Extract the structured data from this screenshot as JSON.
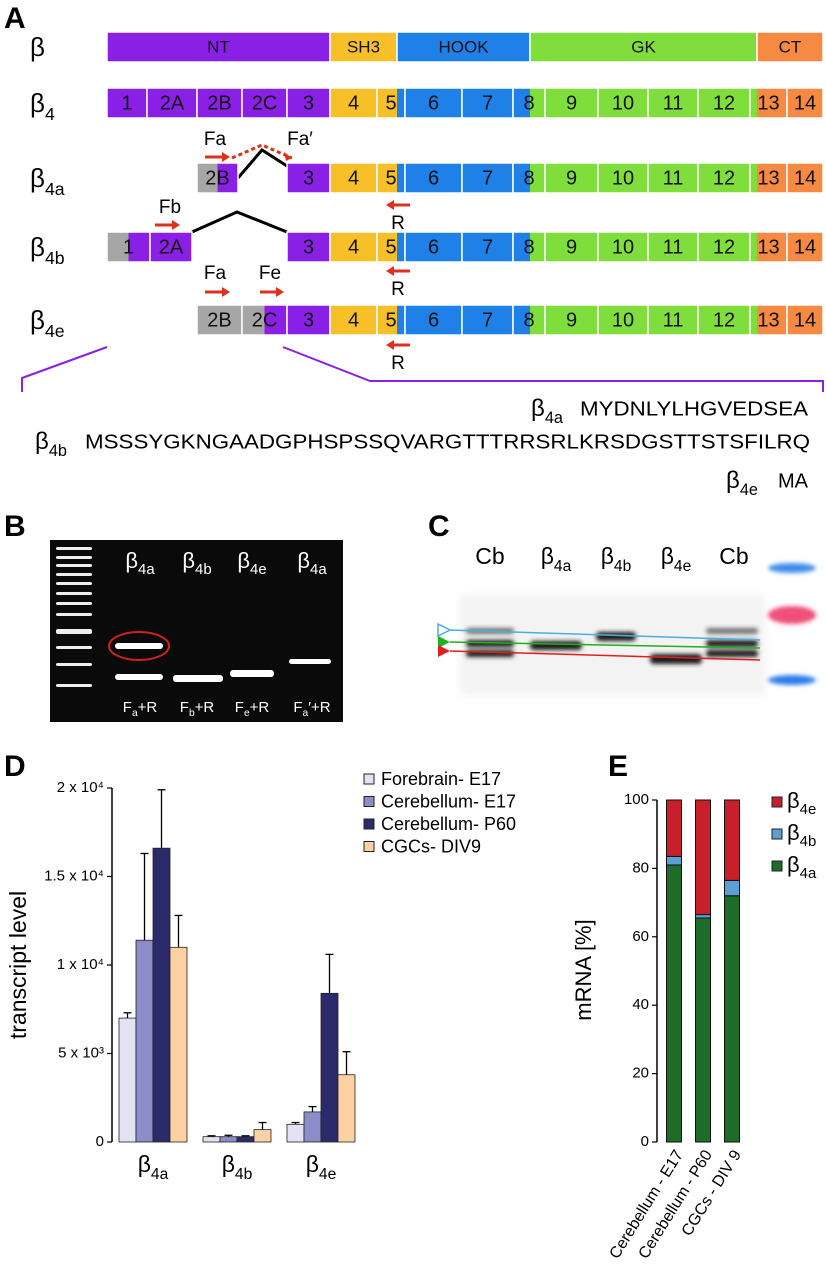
{
  "panel_a": {
    "label": "A",
    "rows": [
      {
        "name": {
          "symbol": "β"
        },
        "segments": [
          {
            "label": "NT",
            "colors": [
              "#8a1fe6"
            ]
          },
          {
            "label": "SH3",
            "colors": [
              "#f7c028"
            ]
          },
          {
            "label": "HOOK",
            "colors": [
              "#1f80e8"
            ]
          },
          {
            "label": "GK",
            "colors": [
              "#80de3c"
            ]
          },
          {
            "label": "CT",
            "colors": [
              "#f68a42"
            ]
          }
        ]
      },
      {
        "name": {
          "symbol": "β",
          "sub": "4"
        },
        "segments": [
          {
            "label": "1",
            "colors": [
              "#8a1fe6"
            ]
          },
          {
            "label": "2A",
            "colors": [
              "#8a1fe6"
            ]
          },
          {
            "label": "2B",
            "colors": [
              "#8a1fe6"
            ]
          },
          {
            "label": "2C",
            "colors": [
              "#8a1fe6"
            ]
          },
          {
            "label": "3",
            "colors": [
              "#8a1fe6"
            ]
          },
          {
            "label": "4",
            "colors": [
              "#f7c028"
            ]
          },
          {
            "label": "5",
            "colors": [
              "#f7c028",
              "#1f80e8"
            ]
          },
          {
            "label": "6",
            "colors": [
              "#1f80e8"
            ]
          },
          {
            "label": "7",
            "colors": [
              "#1f80e8"
            ]
          },
          {
            "label": "8",
            "colors": [
              "#1f80e8",
              "#80de3c"
            ]
          },
          {
            "label": "9",
            "colors": [
              "#80de3c"
            ]
          },
          {
            "label": "10",
            "colors": [
              "#80de3c"
            ]
          },
          {
            "label": "11",
            "colors": [
              "#80de3c"
            ]
          },
          {
            "label": "12",
            "colors": [
              "#80de3c"
            ]
          },
          {
            "label": "13",
            "colors": [
              "#80de3c",
              "#f68a42"
            ]
          },
          {
            "label": "14",
            "colors": [
              "#f68a42"
            ]
          }
        ]
      },
      {
        "name": {
          "symbol": "β",
          "sub": "4a"
        },
        "segments": [
          {
            "label": "2B",
            "colors": [
              "#a6a6a6",
              "#8a1fe6"
            ]
          },
          {
            "label": "3",
            "colors": [
              "#8a1fe6"
            ]
          },
          {
            "label": "4",
            "colors": [
              "#f7c028"
            ]
          },
          {
            "label": "5",
            "colors": [
              "#f7c028",
              "#1f80e8"
            ]
          },
          {
            "label": "6",
            "colors": [
              "#1f80e8"
            ]
          },
          {
            "label": "7",
            "colors": [
              "#1f80e8"
            ]
          },
          {
            "label": "8",
            "colors": [
              "#1f80e8",
              "#80de3c"
            ]
          },
          {
            "label": "9",
            "colors": [
              "#80de3c"
            ]
          },
          {
            "label": "10",
            "colors": [
              "#80de3c"
            ]
          },
          {
            "label": "11",
            "colors": [
              "#80de3c"
            ]
          },
          {
            "label": "12",
            "colors": [
              "#80de3c"
            ]
          },
          {
            "label": "13",
            "colors": [
              "#80de3c",
              "#f68a42"
            ]
          },
          {
            "label": "14",
            "colors": [
              "#f68a42"
            ]
          }
        ]
      },
      {
        "name": {
          "symbol": "β",
          "sub": "4b"
        },
        "segments": [
          {
            "label": "1",
            "colors": [
              "#a6a6a6",
              "#8a1fe6"
            ]
          },
          {
            "label": "2A",
            "colors": [
              "#8a1fe6"
            ]
          },
          {
            "label": "3",
            "colors": [
              "#8a1fe6"
            ]
          },
          {
            "label": "4",
            "colors": [
              "#f7c028"
            ]
          },
          {
            "label": "5",
            "colors": [
              "#f7c028",
              "#1f80e8"
            ]
          },
          {
            "label": "6",
            "colors": [
              "#1f80e8"
            ]
          },
          {
            "label": "7",
            "colors": [
              "#1f80e8"
            ]
          },
          {
            "label": "8",
            "colors": [
              "#1f80e8",
              "#80de3c"
            ]
          },
          {
            "label": "9",
            "colors": [
              "#80de3c"
            ]
          },
          {
            "label": "10",
            "colors": [
              "#80de3c"
            ]
          },
          {
            "label": "11",
            "colors": [
              "#80de3c"
            ]
          },
          {
            "label": "12",
            "colors": [
              "#80de3c"
            ]
          },
          {
            "label": "13",
            "colors": [
              "#80de3c",
              "#f68a42"
            ]
          },
          {
            "label": "14",
            "colors": [
              "#f68a42"
            ]
          }
        ]
      },
      {
        "name": {
          "symbol": "β",
          "sub": "4e"
        },
        "segments": [
          {
            "label": "2B",
            "colors": [
              "#a6a6a6"
            ]
          },
          {
            "label": "2C",
            "colors": [
              "#a6a6a6",
              "#8a1fe6"
            ]
          },
          {
            "label": "3",
            "colors": [
              "#8a1fe6"
            ]
          },
          {
            "label": "4",
            "colors": [
              "#f7c028"
            ]
          },
          {
            "label": "5",
            "colors": [
              "#f7c028",
              "#1f80e8"
            ]
          },
          {
            "label": "6",
            "colors": [
              "#1f80e8"
            ]
          },
          {
            "label": "7",
            "colors": [
              "#1f80e8"
            ]
          },
          {
            "label": "8",
            "colors": [
              "#1f80e8",
              "#80de3c"
            ]
          },
          {
            "label": "9",
            "colors": [
              "#80de3c"
            ]
          },
          {
            "label": "10",
            "colors": [
              "#80de3c"
            ]
          },
          {
            "label": "11",
            "colors": [
              "#80de3c"
            ]
          },
          {
            "label": "12",
            "colors": [
              "#80de3c"
            ]
          },
          {
            "label": "13",
            "colors": [
              "#80de3c",
              "#f68a42"
            ]
          },
          {
            "label": "14",
            "colors": [
              "#f68a42"
            ]
          }
        ]
      }
    ],
    "primers": [
      {
        "label": "Fa"
      },
      {
        "label": "Fa′"
      },
      {
        "label": "R"
      },
      {
        "label": "Fb"
      },
      {
        "label": "R"
      },
      {
        "label": "Fa"
      },
      {
        "label": "Fe"
      },
      {
        "label": "R"
      }
    ],
    "sequences": [
      {
        "name": {
          "symbol": "β",
          "sub": "4a"
        },
        "sequence": "MYDNLYLHGVEDSEA"
      },
      {
        "name": {
          "symbol": "β",
          "sub": "4b"
        },
        "sequence": "MSSSYGKNGAADGPHSPSSQVARGTTTRRSRLKRSDGSTTSTSFILRQ"
      },
      {
        "name": {
          "symbol": "β",
          "sub": "4e"
        },
        "sequence": "MA"
      }
    ]
  },
  "panel_b": {
    "label": "B",
    "lanes": [
      {
        "symbol": "β",
        "sub": "4a"
      },
      {
        "symbol": "β",
        "sub": "4b"
      },
      {
        "symbol": "β",
        "sub": "4e"
      },
      {
        "symbol": "β",
        "sub": "4a"
      }
    ],
    "primer_pairs": [
      {
        "main": "F",
        "sub": "a",
        "rest": "+R"
      },
      {
        "main": "F",
        "sub": "b",
        "rest": "+R"
      },
      {
        "main": "F",
        "sub": "e",
        "rest": "+R"
      },
      {
        "main": "F",
        "sub": "a",
        "rest": "′+R"
      }
    ]
  },
  "panel_c": {
    "label": "C",
    "lanes": [
      {
        "symbol": "Cb"
      },
      {
        "symbol": "β",
        "sub": "4a"
      },
      {
        "symbol": "β",
        "sub": "4b"
      },
      {
        "symbol": "β",
        "sub": "4e"
      },
      {
        "symbol": "Cb"
      }
    ]
  },
  "chart_data": [
    {
      "panel": "D",
      "type": "bar",
      "y_label": "transcript level",
      "categories": [
        {
          "symbol": "β",
          "sub": "4a"
        },
        {
          "symbol": "β",
          "sub": "4b"
        },
        {
          "symbol": "β",
          "sub": "4e"
        }
      ],
      "series": [
        {
          "name": "Forebrain- E17",
          "color": "#e2e2f2",
          "values": [
            7000,
            300,
            1000
          ],
          "errors": [
            300,
            50,
            100
          ]
        },
        {
          "name": "Cerebellum- E17",
          "color": "#8c8cc8",
          "values": [
            11400,
            300,
            1700
          ],
          "errors": [
            4900,
            80,
            300
          ]
        },
        {
          "name": "Cerebellum- P60",
          "color": "#2b2a6b",
          "values": [
            16600,
            300,
            8400
          ],
          "errors": [
            3300,
            50,
            2200
          ]
        },
        {
          "name": "CGCs- DIV9",
          "color": "#fcd2a4",
          "values": [
            11000,
            700,
            3800
          ],
          "errors": [
            1800,
            400,
            1300
          ]
        }
      ],
      "ylim": [
        0,
        20000
      ],
      "yticks": [
        0,
        {
          "value": 5000,
          "label": "5 x 10³"
        },
        {
          "value": 10000,
          "label": "1 x 10⁴"
        },
        {
          "value": 15000,
          "label": "1.5 x 10⁴"
        },
        {
          "value": 20000,
          "label": "2 x 10⁴"
        }
      ]
    },
    {
      "panel": "E",
      "type": "stacked_bar",
      "y_label": "mRNA [%]",
      "categories": [
        "Cerebellum - E17",
        "Cerebellum - P60",
        "CGCs - DIV 9"
      ],
      "series": [
        {
          "name": {
            "symbol": "β",
            "sub": "4a"
          },
          "color": "#1f6b2a",
          "values": [
            81,
            65.5,
            72
          ]
        },
        {
          "name": {
            "symbol": "β",
            "sub": "4b"
          },
          "color": "#5b9fd6",
          "values": [
            2.5,
            1,
            4.5
          ]
        },
        {
          "name": {
            "symbol": "β",
            "sub": "4e"
          },
          "color": "#c8202a",
          "values": [
            16.5,
            33.5,
            23.5
          ]
        }
      ],
      "ylim": [
        0,
        100
      ],
      "yticks": [
        0,
        20,
        40,
        60,
        80,
        100
      ]
    }
  ]
}
